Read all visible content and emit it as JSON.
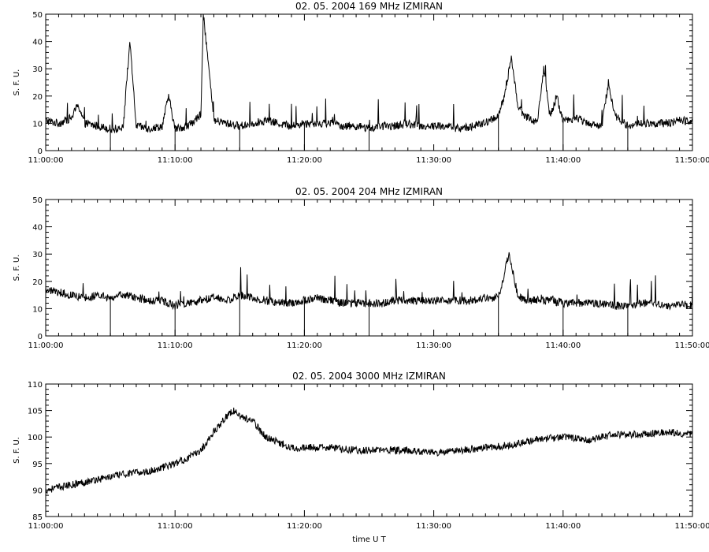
{
  "chart_data": [
    {
      "type": "line",
      "title": "02.  05.  2004    169  MHz    IZMIRAN",
      "ylabel": "S.  F.  U.",
      "xlabel": "",
      "xlim_minutes": [
        0,
        50
      ],
      "ylim": [
        0,
        50
      ],
      "yticks": [
        0,
        10,
        20,
        30,
        40,
        50
      ],
      "xtick_labels": [
        "11:00:00",
        "11:10:00",
        "11:20:00",
        "11:30:00",
        "11:40:00",
        "11:50:00"
      ],
      "grid": false,
      "series": [
        {
          "x_minutes": [
            0,
            1,
            2,
            2.5,
            3,
            4,
            5,
            5.5,
            6,
            6.5,
            7,
            8,
            9,
            9.5,
            10,
            11,
            12,
            12.2,
            13,
            14,
            15,
            16,
            17,
            18,
            19,
            20,
            21,
            22,
            23,
            24,
            25,
            26,
            27,
            28,
            29,
            30,
            31,
            32,
            33,
            34,
            35,
            35.5,
            36,
            36.5,
            37,
            38,
            38.5,
            39,
            39.5,
            40,
            41,
            42,
            43,
            43.5,
            44,
            45,
            46,
            47,
            48,
            49,
            50
          ],
          "values": [
            11,
            10,
            12,
            17,
            10,
            9,
            8,
            8,
            9,
            40,
            9,
            8,
            9,
            20,
            8,
            9,
            13,
            50,
            11,
            10,
            9,
            10,
            11,
            10,
            9,
            10,
            10,
            10,
            9,
            9,
            8,
            9,
            9,
            10,
            9,
            9,
            9,
            8,
            9,
            10,
            13,
            20,
            35,
            16,
            13,
            10,
            30,
            12,
            20,
            11,
            12,
            10,
            9,
            25,
            13,
            9,
            10,
            10,
            10,
            11,
            11
          ]
        }
      ],
      "dropouts_minutes": [
        5,
        10,
        15,
        20,
        25,
        35,
        40,
        45
      ]
    },
    {
      "type": "line",
      "title": "02.  05.  2004    204  MHz    IZMIRAN",
      "ylabel": "S.  F.  U.",
      "xlabel": "",
      "xlim_minutes": [
        0,
        50
      ],
      "ylim": [
        0,
        50
      ],
      "yticks": [
        0,
        10,
        20,
        30,
        40,
        50
      ],
      "xtick_labels": [
        "11:00:00",
        "11:10:00",
        "11:20:00",
        "11:30:00",
        "11:40:00",
        "11:50:00"
      ],
      "grid": false,
      "series": [
        {
          "x_minutes": [
            0,
            1,
            2,
            3,
            4,
            5,
            6,
            7,
            8,
            9,
            10,
            11,
            12,
            13,
            14,
            15,
            16,
            17,
            18,
            19,
            20,
            21,
            22,
            23,
            24,
            25,
            26,
            27,
            28,
            29,
            30,
            31,
            32,
            33,
            34,
            35,
            35.8,
            36.5,
            37,
            38,
            39,
            40,
            41,
            42,
            43,
            44,
            45,
            46,
            47,
            48,
            49,
            50
          ],
          "values": [
            17,
            16,
            15,
            14,
            15,
            14,
            15,
            14,
            13,
            13,
            11,
            12,
            13,
            14,
            13,
            15,
            14,
            13,
            12,
            12,
            13,
            14,
            13,
            12,
            12,
            12,
            12,
            13,
            13,
            13,
            13,
            13,
            13,
            13,
            14,
            14,
            30,
            15,
            13,
            13,
            13,
            12,
            12,
            12,
            12,
            11,
            11,
            12,
            12,
            11,
            12,
            11
          ]
        }
      ],
      "dropouts_minutes": [
        5,
        10,
        15,
        20,
        25,
        35,
        40,
        45
      ]
    },
    {
      "type": "line",
      "title": "02.  05.  2004    3000  MHz    IZMIRAN",
      "ylabel": "S.  F.  U.",
      "xlabel": "time  U T",
      "xlim_minutes": [
        0,
        50
      ],
      "ylim": [
        85,
        110
      ],
      "yticks": [
        85,
        90,
        95,
        100,
        105,
        110
      ],
      "xtick_labels": [
        "11:00:00",
        "11:10:00",
        "11:20:00",
        "11:30:00",
        "11:40:00",
        "11:50:00"
      ],
      "grid": false,
      "series": [
        {
          "x_minutes": [
            0,
            2,
            4,
            6,
            8,
            10,
            11,
            12,
            13,
            14,
            14.5,
            15,
            16,
            17,
            18,
            19,
            20,
            22,
            24,
            26,
            28,
            30,
            32,
            34,
            36,
            38,
            40,
            42,
            44,
            46,
            48,
            50
          ],
          "values": [
            90,
            91,
            92,
            93,
            93.5,
            95,
            96,
            97.5,
            101,
            104,
            105,
            104,
            103,
            100,
            99,
            98,
            98,
            98,
            97.5,
            97.5,
            97.5,
            97,
            97.5,
            98,
            98.5,
            99.5,
            100,
            99.5,
            100.5,
            100.5,
            101,
            100.5
          ]
        }
      ],
      "dropouts_minutes": []
    }
  ]
}
